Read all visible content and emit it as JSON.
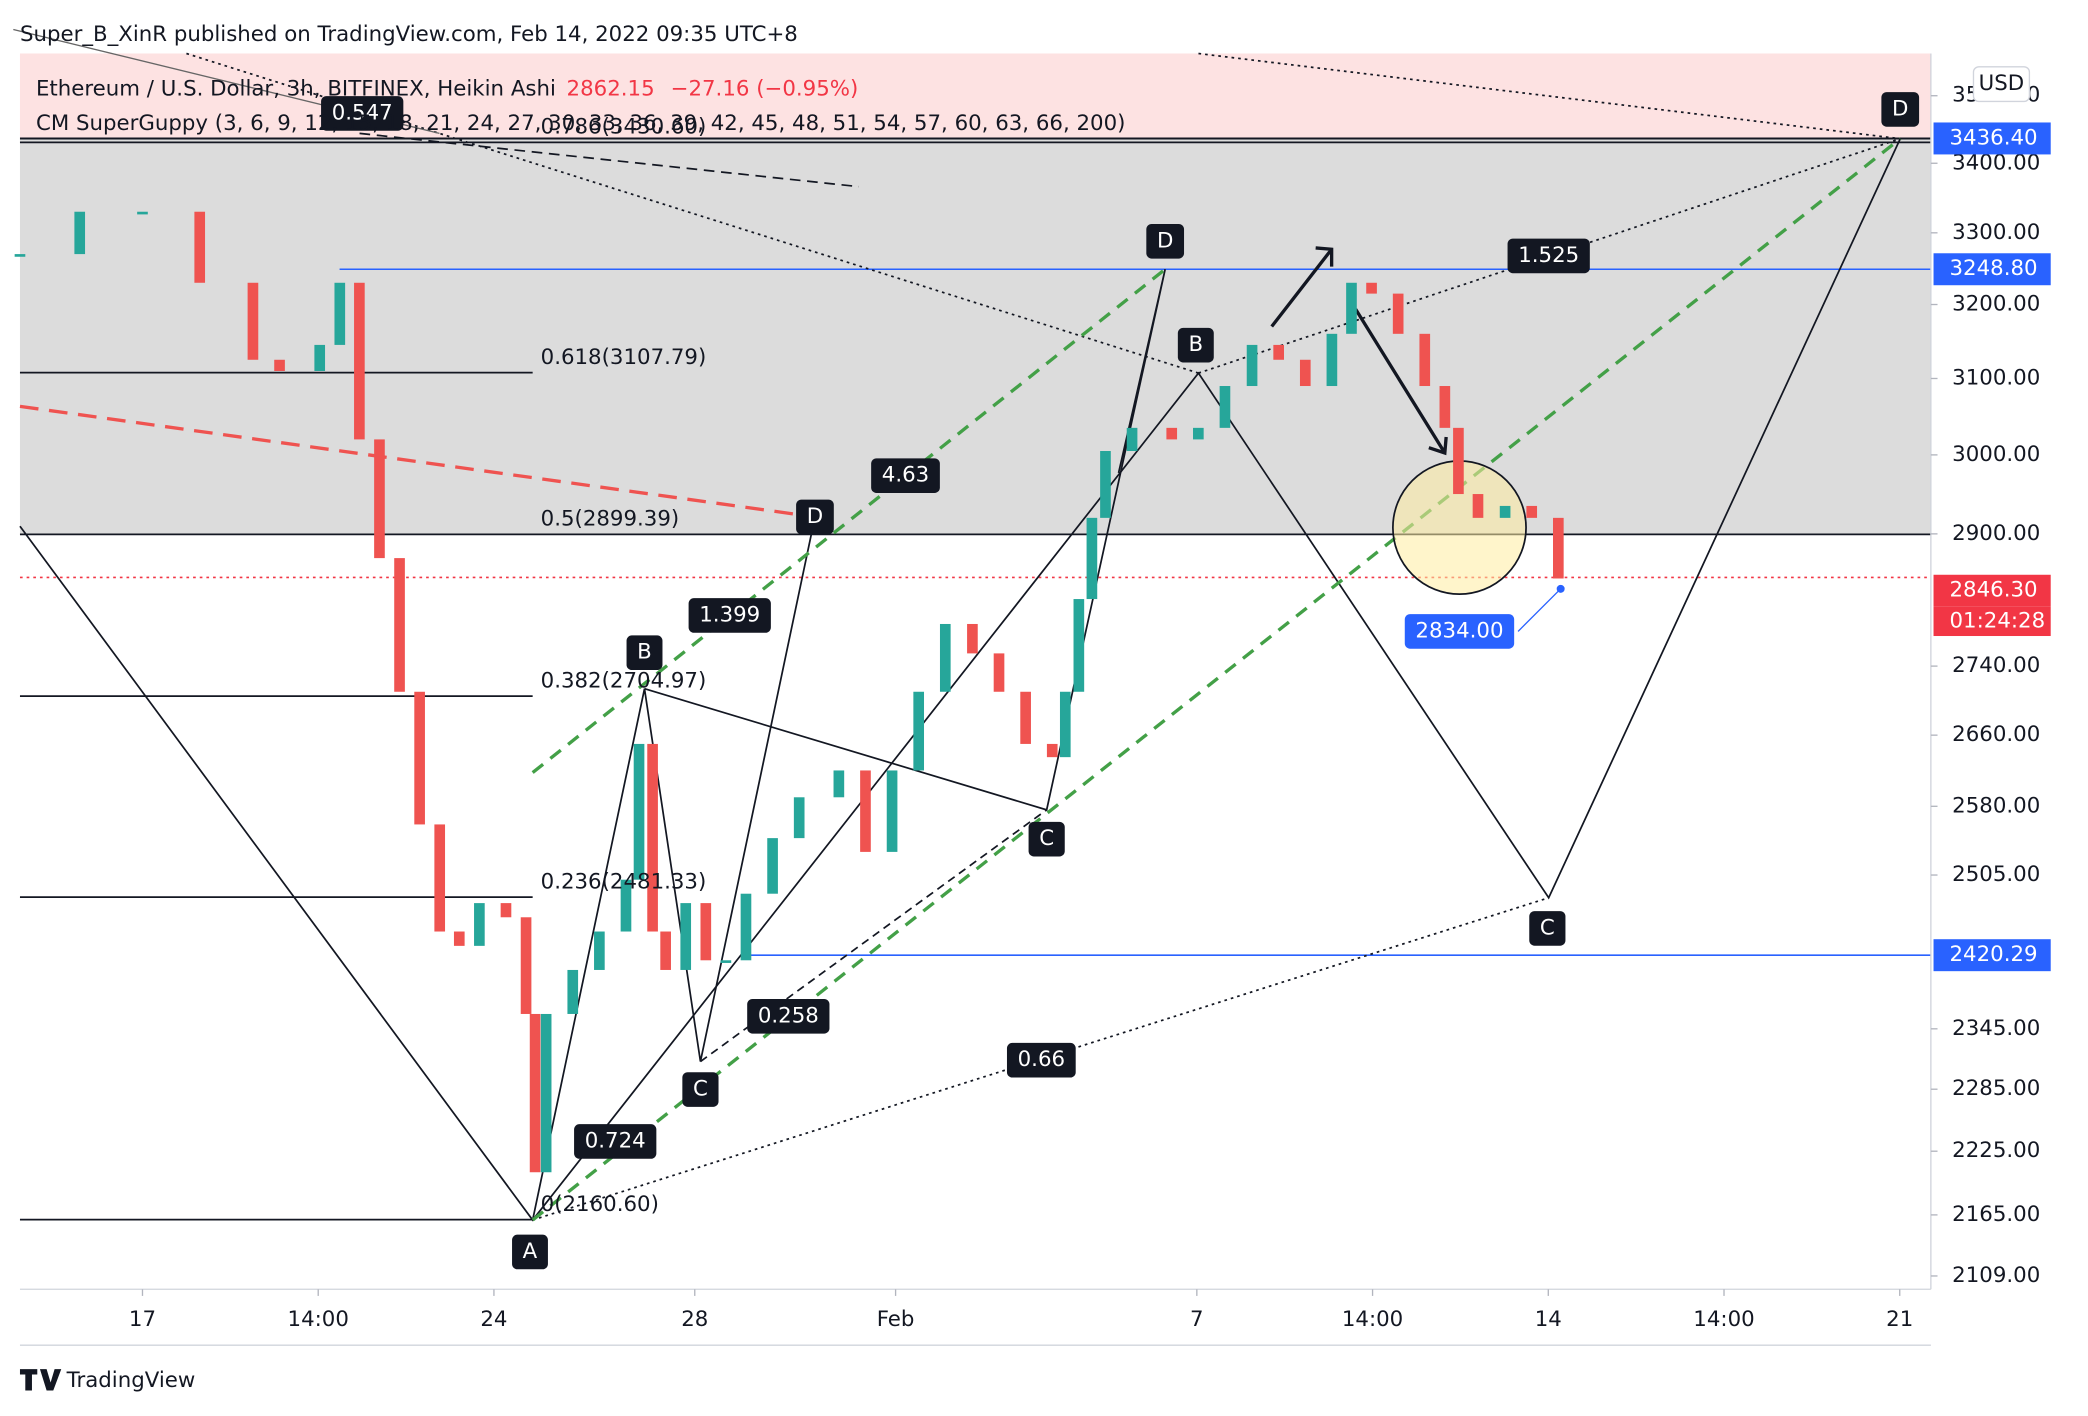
{
  "header": {
    "published": "Super_B_XinR published on TradingView.com, Feb 14, 2022 09:35 UTC+8",
    "symbol": "Ethereum / U.S. Dollar, 3h, BITFINEX, Heikin Ashi",
    "price": "2862.15",
    "change": "−27.16 (−0.95%)",
    "indicator": "CM SuperGuppy (3, 6, 9, 12, 15, 18, 21, 24, 27, 30, 33, 36, 39, 42, 45, 48, 51, 54, 57, 60, 63, 66, 200)",
    "currency": "USD",
    "logo": "TradingView"
  },
  "chart_data": {
    "type": "candlestick",
    "log_scale": true,
    "up_color": "#26a69a",
    "down_color": "#ef5350",
    "x": [
      -2.44,
      -1.25,
      0,
      1.14,
      2.2,
      2.73,
      3.53,
      3.93,
      4.32,
      4.72,
      5.12,
      5.52,
      5.92,
      6.31,
      6.71,
      7.24,
      7.64,
      7.82,
      8.04,
      8.57,
      9.1,
      9.63,
      9.89,
      10.16,
      10.42,
      10.82,
      11.22,
      11.62,
      12.02,
      12.55,
      13.08,
      13.87,
      14.4,
      14.93,
      15.46,
      15.99,
      16.53,
      17.06,
      17.59,
      18.12,
      18.38,
      18.65,
      18.91,
      19.18,
      19.71,
      20.5,
      21.03,
      21.56,
      22.1,
      22.63,
      23.16,
      23.69,
      24.08,
      24.48,
      25.01,
      25.54,
      25.94,
      26.21,
      26.6,
      27.14,
      27.67,
      28.2
    ],
    "values": [
      3270,
      3330,
      3330,
      3230,
      3125,
      3110,
      3145,
      3230,
      3020,
      2870,
      2710,
      2560,
      2445,
      2430,
      2475,
      2460,
      2360,
      2205,
      2360,
      2405,
      2445,
      2500,
      2650,
      2445,
      2405,
      2475,
      2415,
      2415,
      2485,
      2545,
      2590,
      2620,
      2530,
      2620,
      2710,
      2790,
      2755,
      2710,
      2650,
      2635,
      2710,
      2820,
      2920,
      3005,
      3035,
      3020,
      3035,
      3090,
      3145,
      3125,
      3090,
      3160,
      3230,
      3215,
      3160,
      3090,
      3035,
      2950,
      2920,
      2935,
      2920,
      2845
    ],
    "xlim": [
      -2.44,
      35.62
    ],
    "xticks": [
      {
        "value": 0,
        "label": "17"
      },
      {
        "value": 3.5,
        "label": "14:00"
      },
      {
        "value": 7,
        "label": "24"
      },
      {
        "value": 11,
        "label": "28"
      },
      {
        "value": 15,
        "label": "Feb"
      },
      {
        "value": 21,
        "label": "7"
      },
      {
        "value": 24.5,
        "label": "14:00"
      },
      {
        "value": 28,
        "label": "14"
      },
      {
        "value": 31.5,
        "label": "14:00"
      },
      {
        "value": 35,
        "label": "21"
      }
    ],
    "ylim": [
      2097,
      3564
    ],
    "yticks": [
      {
        "value": 3500,
        "label": "3500.00"
      },
      {
        "value": 3400,
        "label": "3400.00"
      },
      {
        "value": 3300,
        "label": "3300.00"
      },
      {
        "value": 3200,
        "label": "3200.00"
      },
      {
        "value": 3100,
        "label": "3100.00"
      },
      {
        "value": 3000,
        "label": "3000.00"
      },
      {
        "value": 2900,
        "label": "2900.00"
      },
      {
        "value": 2740,
        "label": "2740.00"
      },
      {
        "value": 2660,
        "label": "2660.00"
      },
      {
        "value": 2580,
        "label": "2580.00"
      },
      {
        "value": 2505,
        "label": "2505.00"
      },
      {
        "value": 2345,
        "label": "2345.00"
      },
      {
        "value": 2285,
        "label": "2285.00"
      },
      {
        "value": 2225,
        "label": "2225.00"
      },
      {
        "value": 2165,
        "label": "2165.00"
      },
      {
        "value": 2109,
        "label": "2109.00"
      }
    ],
    "markers": [
      {
        "value": 3436.4,
        "label": "3436.40",
        "color": "#2962ff"
      },
      {
        "value": 3248.8,
        "label": "3248.80",
        "color": "#2962ff"
      },
      {
        "value": 2420.29,
        "label": "2420.29",
        "color": "#2962ff"
      },
      {
        "value": 2846.3,
        "label": "2846.30",
        "color": "#f23645"
      }
    ],
    "countdown": "01:24:28",
    "fib_levels": [
      {
        "value": 3430.6,
        "label": "0.786(3430.60)"
      },
      {
        "value": 3107.79,
        "label": "0.618(3107.79)"
      },
      {
        "value": 2899.39,
        "label": "0.5(2899.39)"
      },
      {
        "value": 2704.97,
        "label": "0.382(2704.97)"
      },
      {
        "value": 2481.33,
        "label": "0.236(2481.33)"
      },
      {
        "value": 2160.6,
        "label": "0(2160.60)"
      }
    ]
  },
  "annotations": {
    "points": [
      "A",
      "B",
      "C",
      "D",
      "B",
      "C",
      "D",
      "C",
      "D"
    ],
    "ratios": [
      "0.547",
      "4.63",
      "1.399",
      "0.258",
      "0.724",
      "1.525",
      "0.66"
    ],
    "callout": "2834.00"
  }
}
